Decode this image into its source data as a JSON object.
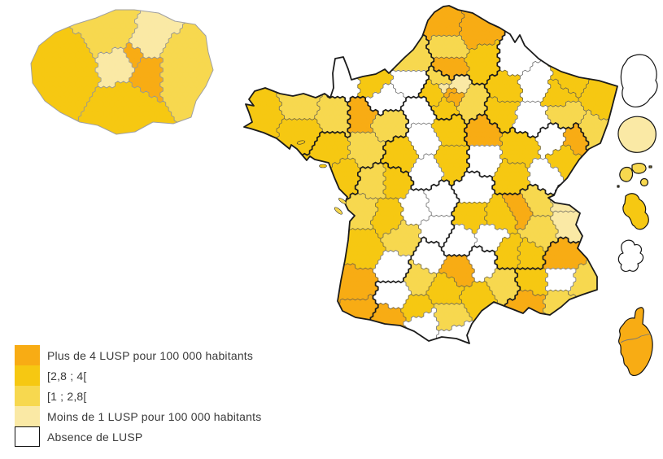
{
  "legend": {
    "items": [
      {
        "id": "plus4",
        "label": "Plus de 4 LUSP pour 100 000 habitants",
        "color": "#F8AC14",
        "bordered": false
      },
      {
        "id": "c28_4",
        "label": "[2,8 ; 4[",
        "color": "#F6C812",
        "bordered": false
      },
      {
        "id": "c1_28",
        "label": "[1 ; 2,8[",
        "color": "#F7D84F",
        "bordered": false
      },
      {
        "id": "moins1",
        "label": "Moins de 1 LUSP pour 100 000 habitants",
        "color": "#FAE9A5",
        "bordered": false
      },
      {
        "id": "absence",
        "label": "Absence de LUSP",
        "color": "#FFFFFF",
        "bordered": true
      }
    ]
  },
  "map": {
    "category_colors": {
      "plus4": "#F8AC14",
      "c28_4": "#F6C812",
      "c1_28": "#F7D84F",
      "moins1": "#FAE9A5",
      "absence": "#FFFFFF"
    },
    "border_colors": {
      "department": "#555555",
      "region": "#1b1b1b",
      "coastline": "#1b1b1b",
      "inset": "#969696"
    },
    "departments": [
      {
        "code": "01",
        "name": "Ain",
        "category": "c1_28"
      },
      {
        "code": "02",
        "name": "Aisne",
        "category": "c28_4"
      },
      {
        "code": "03",
        "name": "Allier",
        "category": "absence"
      },
      {
        "code": "04",
        "name": "Alpes-de-Haute-Provence",
        "category": "absence"
      },
      {
        "code": "05",
        "name": "Hautes-Alpes",
        "category": "plus4"
      },
      {
        "code": "06",
        "name": "Alpes-Maritimes",
        "category": "c1_28"
      },
      {
        "code": "07",
        "name": "Ardèche",
        "category": "c28_4"
      },
      {
        "code": "08",
        "name": "Ardennes",
        "category": "absence"
      },
      {
        "code": "09",
        "name": "Ariège",
        "category": "absence"
      },
      {
        "code": "10",
        "name": "Aube",
        "category": "c28_4"
      },
      {
        "code": "11",
        "name": "Aude",
        "category": "c1_28"
      },
      {
        "code": "12",
        "name": "Aveyron",
        "category": "plus4"
      },
      {
        "code": "13",
        "name": "Bouches-du-Rhône",
        "category": "plus4"
      },
      {
        "code": "14",
        "name": "Calvados",
        "category": "c28_4"
      },
      {
        "code": "15",
        "name": "Cantal",
        "category": "absence"
      },
      {
        "code": "16",
        "name": "Charente",
        "category": "c28_4"
      },
      {
        "code": "17",
        "name": "Charente-Maritime",
        "category": "c1_28"
      },
      {
        "code": "18",
        "name": "Cher",
        "category": "c28_4"
      },
      {
        "code": "19",
        "name": "Corrèze",
        "category": "absence"
      },
      {
        "code": "21",
        "name": "Côte-d'Or",
        "category": "c28_4"
      },
      {
        "code": "22",
        "name": "Côtes-d'Armor",
        "category": "c1_28"
      },
      {
        "code": "23",
        "name": "Creuse",
        "category": "absence"
      },
      {
        "code": "24",
        "name": "Dordogne",
        "category": "c1_28"
      },
      {
        "code": "25",
        "name": "Doubs",
        "category": "c28_4"
      },
      {
        "code": "26",
        "name": "Drôme",
        "category": "c28_4"
      },
      {
        "code": "27",
        "name": "Eure",
        "category": "absence"
      },
      {
        "code": "28",
        "name": "Eure-et-Loir",
        "category": "absence"
      },
      {
        "code": "29",
        "name": "Finistère",
        "category": "c28_4"
      },
      {
        "code": "30",
        "name": "Gard",
        "category": "c1_28"
      },
      {
        "code": "31",
        "name": "Haute-Garonne",
        "category": "c28_4"
      },
      {
        "code": "32",
        "name": "Gers",
        "category": "absence"
      },
      {
        "code": "33",
        "name": "Gironde",
        "category": "c28_4"
      },
      {
        "code": "34",
        "name": "Hérault",
        "category": "c28_4"
      },
      {
        "code": "35",
        "name": "Ille-et-Vilaine",
        "category": "c1_28"
      },
      {
        "code": "36",
        "name": "Indre",
        "category": "absence"
      },
      {
        "code": "37",
        "name": "Indre-et-Loire",
        "category": "c28_4"
      },
      {
        "code": "38",
        "name": "Isère",
        "category": "c1_28"
      },
      {
        "code": "39",
        "name": "Jura",
        "category": "absence"
      },
      {
        "code": "40",
        "name": "Landes",
        "category": "plus4"
      },
      {
        "code": "41",
        "name": "Loir-et-Cher",
        "category": "absence"
      },
      {
        "code": "42",
        "name": "Loire",
        "category": "c28_4"
      },
      {
        "code": "43",
        "name": "Haute-Loire",
        "category": "absence"
      },
      {
        "code": "44",
        "name": "Loire-Atlantique",
        "category": "c28_4"
      },
      {
        "code": "45",
        "name": "Loiret",
        "category": "c28_4"
      },
      {
        "code": "46",
        "name": "Lot",
        "category": "absence"
      },
      {
        "code": "47",
        "name": "Lot-et-Garonne",
        "category": "absence"
      },
      {
        "code": "48",
        "name": "Lozère",
        "category": "absence"
      },
      {
        "code": "49",
        "name": "Maine-et-Loire",
        "category": "c1_28"
      },
      {
        "code": "50",
        "name": "Manche",
        "category": "absence"
      },
      {
        "code": "51",
        "name": "Marne",
        "category": "c28_4"
      },
      {
        "code": "52",
        "name": "Haute-Marne",
        "category": "absence"
      },
      {
        "code": "53",
        "name": "Mayenne",
        "category": "plus4"
      },
      {
        "code": "54",
        "name": "Meurthe-et-Moselle",
        "category": "c28_4"
      },
      {
        "code": "55",
        "name": "Meuse",
        "category": "absence"
      },
      {
        "code": "56",
        "name": "Morbihan",
        "category": "c28_4"
      },
      {
        "code": "57",
        "name": "Moselle",
        "category": "c28_4"
      },
      {
        "code": "58",
        "name": "Nièvre",
        "category": "absence"
      },
      {
        "code": "59",
        "name": "Nord",
        "category": "plus4"
      },
      {
        "code": "60",
        "name": "Oise",
        "category": "plus4"
      },
      {
        "code": "61",
        "name": "Orne",
        "category": "absence"
      },
      {
        "code": "62",
        "name": "Pas-de-Calais",
        "category": "plus4"
      },
      {
        "code": "63",
        "name": "Puy-de-Dôme",
        "category": "c28_4"
      },
      {
        "code": "64",
        "name": "Pyrénées-Atlantiques",
        "category": "plus4"
      },
      {
        "code": "65",
        "name": "Hautes-Pyrénées",
        "category": "plus4"
      },
      {
        "code": "66",
        "name": "Pyrénées-Orientales",
        "category": "absence"
      },
      {
        "code": "67",
        "name": "Bas-Rhin",
        "category": "c28_4"
      },
      {
        "code": "68",
        "name": "Haut-Rhin",
        "category": "c1_28"
      },
      {
        "code": "69",
        "name": "Rhône",
        "category": "plus4"
      },
      {
        "code": "70",
        "name": "Haute-Saône",
        "category": "absence"
      },
      {
        "code": "71",
        "name": "Saône-et-Loire",
        "category": "c28_4"
      },
      {
        "code": "72",
        "name": "Sarthe",
        "category": "c1_28"
      },
      {
        "code": "73",
        "name": "Savoie",
        "category": "moins1"
      },
      {
        "code": "74",
        "name": "Haute-Savoie",
        "category": "moins1"
      },
      {
        "code": "75",
        "name": "Paris",
        "category": "plus4"
      },
      {
        "code": "76",
        "name": "Seine-Maritime",
        "category": "c1_28"
      },
      {
        "code": "77",
        "name": "Seine-et-Marne",
        "category": "c1_28"
      },
      {
        "code": "78",
        "name": "Yvelines",
        "category": "c28_4"
      },
      {
        "code": "79",
        "name": "Deux-Sèvres",
        "category": "c1_28"
      },
      {
        "code": "80",
        "name": "Somme",
        "category": "c1_28"
      },
      {
        "code": "81",
        "name": "Tarn",
        "category": "c28_4"
      },
      {
        "code": "82",
        "name": "Tarn-et-Garonne",
        "category": "c1_28"
      },
      {
        "code": "83",
        "name": "Var",
        "category": "c1_28"
      },
      {
        "code": "84",
        "name": "Vaucluse",
        "category": "c28_4"
      },
      {
        "code": "85",
        "name": "Vendée",
        "category": "c28_4"
      },
      {
        "code": "86",
        "name": "Vienne",
        "category": "c28_4"
      },
      {
        "code": "87",
        "name": "Haute-Vienne",
        "category": "absence"
      },
      {
        "code": "88",
        "name": "Vosges",
        "category": "c1_28"
      },
      {
        "code": "89",
        "name": "Yonne",
        "category": "plus4"
      },
      {
        "code": "90",
        "name": "Territoire de Belfort",
        "category": "plus4"
      },
      {
        "code": "91",
        "name": "Essonne",
        "category": "c28_4"
      },
      {
        "code": "92",
        "name": "Hauts-de-Seine",
        "category": "moins1"
      },
      {
        "code": "93",
        "name": "Seine-Saint-Denis",
        "category": "moins1"
      },
      {
        "code": "94",
        "name": "Val-de-Marne",
        "category": "plus4"
      },
      {
        "code": "95",
        "name": "Val-d'Oise",
        "category": "c1_28"
      }
    ],
    "inset_idf": {
      "name": "Île-de-France"
    },
    "overseas": [
      {
        "name": "Guyane",
        "category": "absence"
      },
      {
        "name": "La Réunion",
        "category": "moins1"
      },
      {
        "name": "Guadeloupe",
        "category": "c1_28"
      },
      {
        "name": "Martinique",
        "category": "c28_4"
      },
      {
        "name": "Mayotte",
        "category": "absence"
      },
      {
        "name": "Corse",
        "category": "plus4"
      }
    ]
  }
}
